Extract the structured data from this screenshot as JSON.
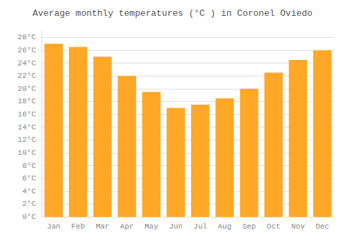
{
  "chart_data": {
    "type": "bar",
    "title": "Average monthly temperatures (°C ) in Coronel Oviedo",
    "categories": [
      "Jan",
      "Feb",
      "Mar",
      "Apr",
      "May",
      "Jun",
      "Jul",
      "Aug",
      "Sep",
      "Oct",
      "Nov",
      "Dec"
    ],
    "values": [
      27.0,
      26.5,
      25.0,
      22.0,
      19.5,
      17.0,
      17.5,
      18.5,
      20.0,
      22.5,
      24.5,
      26.0
    ],
    "color": "#FFA726",
    "ylim": [
      0,
      29
    ],
    "yticks": [
      {
        "value": 0,
        "label": "0°C"
      },
      {
        "value": 2,
        "label": "2°C"
      },
      {
        "value": 4,
        "label": "4°C"
      },
      {
        "value": 6,
        "label": "6°C"
      },
      {
        "value": 8,
        "label": "8°C"
      },
      {
        "value": 10,
        "label": "10°C"
      },
      {
        "value": 12,
        "label": "12°C"
      },
      {
        "value": 14,
        "label": "14°C"
      },
      {
        "value": 16,
        "label": "16°C"
      },
      {
        "value": 18,
        "label": "18°C"
      },
      {
        "value": 20,
        "label": "20°C"
      },
      {
        "value": 22,
        "label": "22°C"
      },
      {
        "value": 24,
        "label": "24°C"
      },
      {
        "value": 26,
        "label": "26°C"
      },
      {
        "value": 28,
        "label": "28°C"
      }
    ],
    "grid": true
  }
}
